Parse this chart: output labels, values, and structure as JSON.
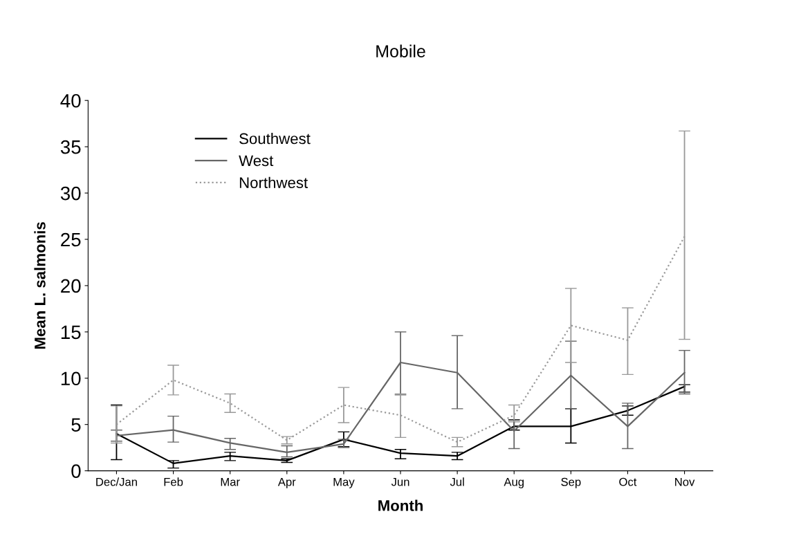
{
  "chart_data": {
    "type": "line",
    "title": "Mobile",
    "xlabel": "Month",
    "ylabel": "Mean L. salmonis",
    "categories": [
      "Dec/Jan",
      "Feb",
      "Mar",
      "Apr",
      "May",
      "Jun",
      "Jul",
      "Aug",
      "Sep",
      "Oct",
      "Nov"
    ],
    "ylim": [
      0,
      40
    ],
    "yticks": [
      0,
      5,
      10,
      15,
      20,
      25,
      30,
      35,
      40
    ],
    "grid": false,
    "legend": "top left",
    "marker": "none",
    "series": [
      {
        "name": "Southwest",
        "color": "#000000",
        "line_style": "solid",
        "values": [
          4.0,
          0.8,
          1.6,
          1.1,
          3.4,
          1.9,
          1.6,
          4.8,
          4.8,
          6.5,
          9.1
        ],
        "errors": [
          [
            1.2,
            7.1
          ],
          [
            0.3,
            1.1
          ],
          [
            1.1,
            2.0
          ],
          [
            0.9,
            1.3
          ],
          [
            2.6,
            4.2
          ],
          [
            1.3,
            2.3
          ],
          [
            1.2,
            2.0
          ],
          [
            4.4,
            5.5
          ],
          [
            3.0,
            6.7
          ],
          [
            6.0,
            7.0
          ],
          [
            8.5,
            9.3
          ]
        ]
      },
      {
        "name": "West",
        "color": "#666666",
        "line_style": "solid",
        "values": [
          3.8,
          4.4,
          3.0,
          2.0,
          2.9,
          11.7,
          10.6,
          4.3,
          10.3,
          4.8,
          10.6
        ],
        "errors": [
          [
            3.2,
            4.4
          ],
          [
            3.1,
            5.9
          ],
          [
            2.3,
            3.5
          ],
          [
            1.5,
            2.7
          ],
          [
            2.5,
            3.4
          ],
          [
            8.2,
            15.0
          ],
          [
            6.7,
            14.6
          ],
          [
            2.4,
            5.3
          ],
          [
            6.7,
            14.0
          ],
          [
            2.4,
            7.3
          ],
          [
            8.3,
            13.0
          ]
        ]
      },
      {
        "name": "Northwest",
        "color": "#999999",
        "line_style": "dotted",
        "values": [
          5.0,
          9.8,
          7.3,
          3.3,
          7.1,
          6.0,
          3.1,
          6.0,
          15.7,
          14.1,
          25.3
        ],
        "errors": [
          [
            3.0,
            7.0
          ],
          [
            8.2,
            11.4
          ],
          [
            6.3,
            8.3
          ],
          [
            2.9,
            3.7
          ],
          [
            5.2,
            9.0
          ],
          [
            3.6,
            8.3
          ],
          [
            2.6,
            3.6
          ],
          [
            5.3,
            7.1
          ],
          [
            11.7,
            19.7
          ],
          [
            10.4,
            17.6
          ],
          [
            14.2,
            36.7
          ]
        ]
      }
    ]
  }
}
